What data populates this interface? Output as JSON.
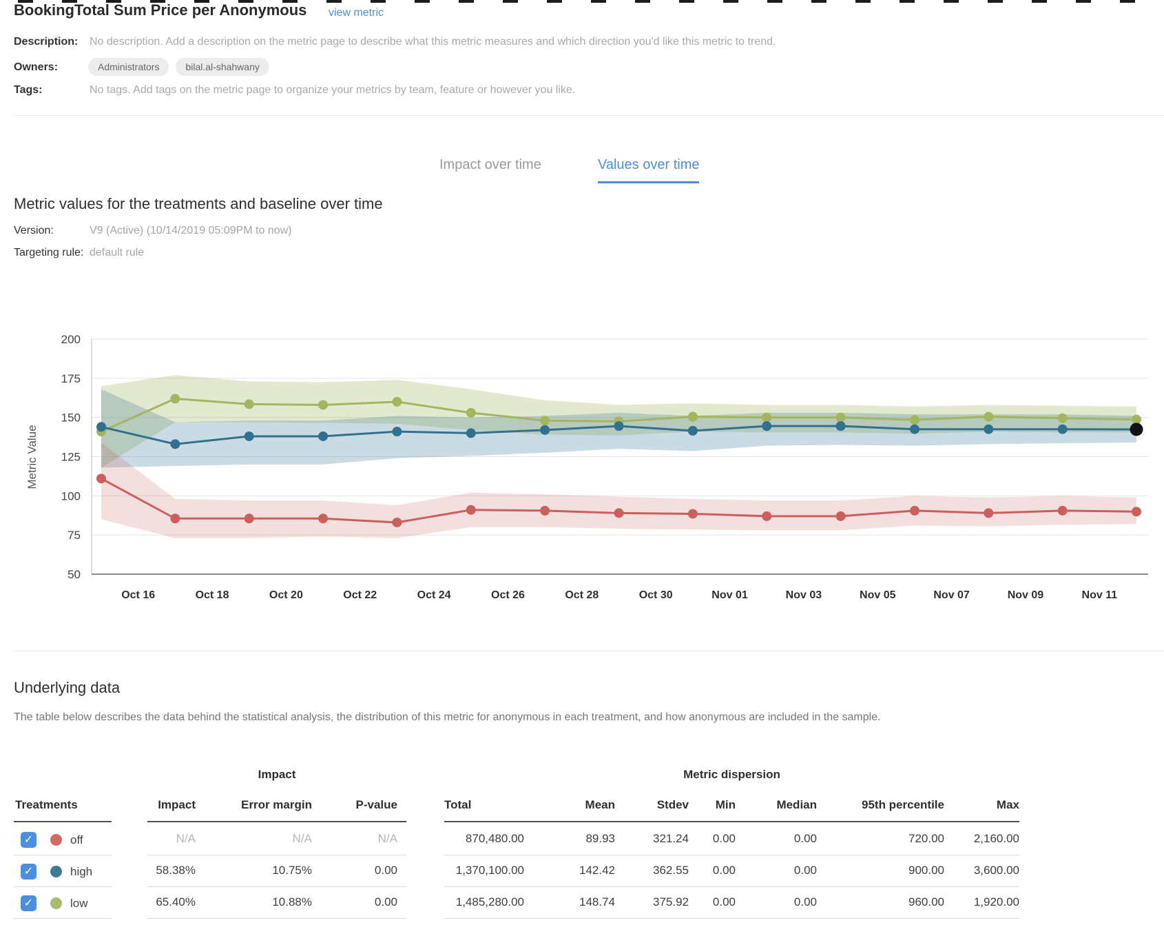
{
  "colors": {
    "accent_blue": "#4a90d9",
    "checkbox_blue": "#4a90e2",
    "series_off": "#c9605d",
    "series_high": "#31708f",
    "series_low": "#a3b55d",
    "highlight_point": "#111111"
  },
  "header": {
    "title": "BookingTotal Sum Price per Anonymous",
    "view_metric_label": "view metric",
    "description_label": "Description:",
    "description_value": "No description. Add a description on the metric page to describe what this metric measures and which direction you'd like this metric to trend.",
    "owners_label": "Owners:",
    "owners": [
      "Administrators",
      "bilal.al-shahwany"
    ],
    "tags_label": "Tags:",
    "tags_value": "No tags. Add tags on the metric page to organize your metrics by team, feature or however you like."
  },
  "tabs": [
    {
      "label": "Impact over time",
      "active": false
    },
    {
      "label": "Values over time",
      "active": true
    }
  ],
  "values_section": {
    "heading": "Metric values for the treatments and baseline over time",
    "version_label": "Version:",
    "version_value": "V9 (Active) (10/14/2019 05:09PM to now)",
    "targeting_label": "Targeting rule:",
    "targeting_value": "default rule"
  },
  "chart_data": {
    "type": "line",
    "title": "",
    "xlabel": "",
    "ylabel": "Metric Value",
    "ylim": [
      50,
      200
    ],
    "yticks": [
      50,
      75,
      100,
      125,
      150,
      175,
      200
    ],
    "grid": true,
    "legend_position": "none",
    "xticklabels": [
      "Oct 16",
      "Oct 18",
      "Oct 20",
      "Oct 22",
      "Oct 24",
      "Oct 26",
      "Oct 28",
      "Oct 30",
      "Nov 01",
      "Nov 03",
      "Nov 05",
      "Nov 07",
      "Nov 09",
      "Nov 11"
    ],
    "series": [
      {
        "name": "low",
        "color": "#a3b55d",
        "band_opacity": 0.3,
        "values": [
          141,
          162,
          158.5,
          158,
          160,
          153,
          148,
          147.5,
          150.5,
          150,
          150,
          148.5,
          150.5,
          149.5,
          148.7
        ],
        "band": [
          [
            118,
            170
          ],
          [
            147,
            177
          ],
          [
            147,
            173
          ],
          [
            146.5,
            172.5
          ],
          [
            146,
            174
          ],
          [
            142,
            168
          ],
          [
            139,
            161
          ],
          [
            138.5,
            158
          ],
          [
            141,
            159
          ],
          [
            140.5,
            158
          ],
          [
            140.5,
            158
          ],
          [
            139.5,
            157
          ],
          [
            141,
            158
          ],
          [
            140.5,
            157.5
          ],
          [
            140.5,
            157
          ]
        ]
      },
      {
        "name": "high",
        "color": "#31708f",
        "band_opacity": 0.25,
        "values": [
          144,
          133,
          138,
          138,
          141,
          140,
          142,
          144.5,
          141.5,
          144.5,
          144.5,
          142.5,
          142.5,
          142.5,
          142.4
        ],
        "band": [
          [
            118,
            168
          ],
          [
            119,
            147
          ],
          [
            120,
            148
          ],
          [
            120,
            148
          ],
          [
            124,
            151
          ],
          [
            125.5,
            150
          ],
          [
            127.5,
            151
          ],
          [
            130,
            153
          ],
          [
            128.5,
            151
          ],
          [
            132,
            153
          ],
          [
            132.5,
            153
          ],
          [
            132,
            152
          ],
          [
            133,
            152
          ],
          [
            133.5,
            152
          ],
          [
            134,
            151
          ]
        ]
      },
      {
        "name": "off",
        "color": "#c9605d",
        "band_opacity": 0.2,
        "values": [
          111,
          85.5,
          85.5,
          85.5,
          83,
          91,
          90.5,
          89,
          88.5,
          87,
          87,
          90.5,
          89,
          90.5,
          89.9
        ],
        "band": [
          [
            85,
            134
          ],
          [
            73,
            98
          ],
          [
            73,
            97
          ],
          [
            74,
            97
          ],
          [
            73,
            94
          ],
          [
            80,
            102
          ],
          [
            80,
            101
          ],
          [
            79,
            99.5
          ],
          [
            78.5,
            98
          ],
          [
            78,
            97
          ],
          [
            78,
            97
          ],
          [
            81,
            100
          ],
          [
            80.5,
            99
          ],
          [
            81.5,
            100
          ],
          [
            82,
            99
          ]
        ]
      }
    ],
    "highlight": {
      "series": "high",
      "point_index": 14,
      "color": "#111111"
    }
  },
  "underlying": {
    "heading": "Underlying data",
    "description": "The table below describes the data behind the statistical analysis, the distribution of this metric for anonymous in each treatment, and how anonymous are included in the sample."
  },
  "table": {
    "treatments_header": "Treatments",
    "groups": [
      {
        "label": "Impact",
        "columns": [
          "Impact",
          "Error margin",
          "P-value"
        ]
      },
      {
        "label": "Metric dispersion",
        "columns": [
          "Total",
          "Mean",
          "Stdev",
          "Min",
          "Median",
          "95th percentile",
          "Max"
        ]
      }
    ],
    "rows": [
      {
        "treatment": "off",
        "dot_color": "#d16a66",
        "checked": true,
        "muted_impact": true,
        "impact": [
          "N/A",
          "N/A",
          "N/A"
        ],
        "dispersion": [
          "870,480.00",
          "89.93",
          "321.24",
          "0.00",
          "0.00",
          "720.00",
          "2,160.00"
        ]
      },
      {
        "treatment": "high",
        "dot_color": "#3d7b95",
        "checked": true,
        "muted_impact": false,
        "impact": [
          "58.38%",
          "10.75%",
          "0.00"
        ],
        "dispersion": [
          "1,370,100.00",
          "142.42",
          "362.55",
          "0.00",
          "0.00",
          "900.00",
          "3,600.00"
        ]
      },
      {
        "treatment": "low",
        "dot_color": "#a9bc6c",
        "checked": true,
        "muted_impact": false,
        "impact": [
          "65.40%",
          "10.88%",
          "0.00"
        ],
        "dispersion": [
          "1,485,280.00",
          "148.74",
          "375.92",
          "0.00",
          "0.00",
          "960.00",
          "1,920.00"
        ]
      }
    ]
  }
}
